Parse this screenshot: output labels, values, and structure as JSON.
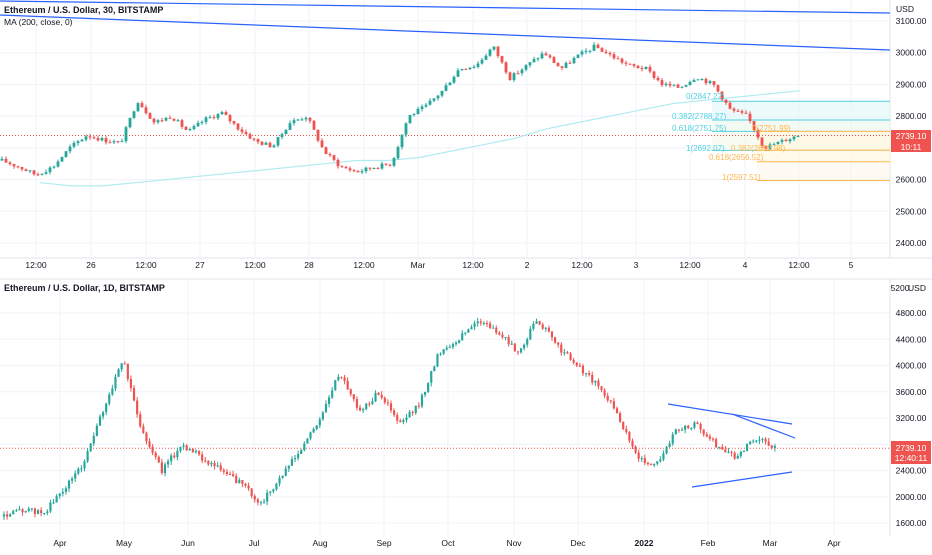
{
  "top_panel": {
    "title": "Ethereum / U.S. Dollar, 30, BITSTAMP",
    "indicator": "MA (200, close, 0)",
    "currency": "USD",
    "price_label": "2739.10",
    "countdown": "10:11"
  },
  "bottom_panel": {
    "title": "Ethereum / U.S. Dollar, 1D, BITSTAMP",
    "currency_tag": "USD",
    "price_label": "2739.10",
    "countdown": "12:40:11"
  },
  "fib_labels": {
    "blue": [
      "0(2847.22)",
      "0.382(2788.27)",
      "0.618(2751.75)",
      "1(2692.07)"
    ],
    "orange": [
      "0(2751.99)",
      "0.382(2692.98)",
      "0.618(2656.52)",
      "1(2597.51)"
    ]
  },
  "colors": {
    "up": "#26a69a",
    "down": "#ef5350",
    "trendline": "#2962ff",
    "ma": "#b2ebf2",
    "fib_blue": "#4dd0e1",
    "fib_orange": "#ffb74d",
    "grid": "#f0f3fa",
    "axis_text": "#131722"
  },
  "chart_data": [
    {
      "type": "candlestick",
      "title": "Ethereum / U.S. Dollar, 30, BITSTAMP",
      "indicator": "MA (200, close, 0)",
      "ylabel": "USD",
      "ylim": [
        2350,
        3150
      ],
      "y_ticks": [
        "3100.00",
        "3000.00",
        "2900.00",
        "2800.00",
        "2700.00",
        "2600.00",
        "2500.00",
        "2400.00"
      ],
      "x_ticks": [
        "12:00",
        "26",
        "12:00",
        "27",
        "12:00",
        "28",
        "12:00",
        "Mar",
        "12:00",
        "2",
        "12:00",
        "3",
        "12:00",
        "4",
        "12:00",
        "5"
      ],
      "close_path": [
        2660,
        2640,
        2615,
        2640,
        2700,
        2740,
        2725,
        2715,
        2850,
        2780,
        2800,
        2750,
        2790,
        2810,
        2760,
        2720,
        2705,
        2780,
        2800,
        2690,
        2640,
        2625,
        2640,
        2650,
        2800,
        2830,
        2880,
        2950,
        2960,
        3020,
        2920,
        2960,
        3000,
        2950,
        2990,
        3020,
        2990,
        2960,
        2950,
        2900,
        2890,
        2925,
        2900,
        2820,
        2800,
        2700,
        2720,
        2740
      ],
      "ma_200": [
        2590,
        2580,
        2580,
        2590,
        2600,
        2610,
        2620,
        2630,
        2640,
        2650,
        2660,
        2660,
        2670,
        2690,
        2710,
        2730,
        2760,
        2780,
        2800,
        2820,
        2840,
        2850,
        2860,
        2870,
        2880
      ],
      "last_price": 2739.1
    },
    {
      "type": "candlestick",
      "title": "Ethereum / U.S. Dollar, 1D, BITSTAMP",
      "ylim": [
        1500,
        5200
      ],
      "y_ticks": [
        "5200",
        "4800.00",
        "4400.00",
        "4000.00",
        "3600.00",
        "3200.00",
        "2800.00",
        "2400.00",
        "2000.00",
        "1600.00"
      ],
      "x_ticks": [
        "Apr",
        "May",
        "Jun",
        "Jul",
        "Aug",
        "Sep",
        "Oct",
        "Nov",
        "Dec",
        "2022",
        "Feb",
        "Mar",
        "Apr"
      ],
      "close_path": [
        1700,
        1800,
        1750,
        2100,
        2500,
        3300,
        4100,
        3000,
        2400,
        2800,
        2600,
        2400,
        2200,
        1900,
        2300,
        2700,
        3200,
        3900,
        3300,
        3600,
        3100,
        3400,
        4200,
        4400,
        4700,
        4500,
        4200,
        4700,
        4300,
        4000,
        3700,
        3300,
        2600,
        2500,
        3000,
        3100,
        2800,
        2600,
        2900,
        2739
      ],
      "last_price": 2739.1
    }
  ]
}
